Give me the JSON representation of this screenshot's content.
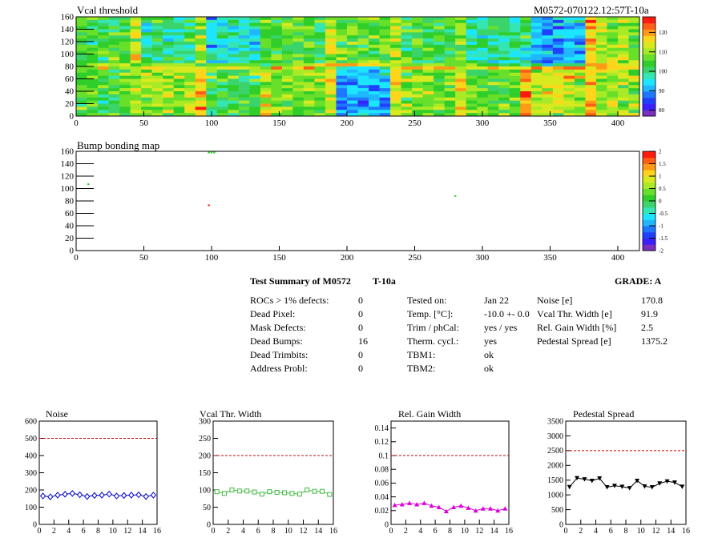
{
  "header": {
    "map_title": "Vcal threshold",
    "module_label": "M0572-070122.12:57T-10a",
    "bump_title": "Bump bonding map"
  },
  "summary": {
    "title": "Test Summary of M0572",
    "tag": "T-10a",
    "grade": "GRADE:  A",
    "col1": [
      {
        "label": "ROCs > 1% defects:",
        "value": "0"
      },
      {
        "label": "Dead Pixel:",
        "value": "0"
      },
      {
        "label": "Mask Defects:",
        "value": "0"
      },
      {
        "label": "Dead Bumps:",
        "value": "16"
      },
      {
        "label": "Dead Trimbits:",
        "value": "0"
      },
      {
        "label": "Address Probl:",
        "value": "0"
      }
    ],
    "col2": [
      {
        "label": "Tested on:",
        "value": "Jan 22"
      },
      {
        "label": "Temp. [°C]:",
        "value": "-10.0 +- 0.0"
      },
      {
        "label": "Trim / phCal:",
        "value": "yes / yes"
      },
      {
        "label": "Therm. cycl.:",
        "value": "yes"
      },
      {
        "label": "TBM1:",
        "value": "ok"
      },
      {
        "label": "TBM2:",
        "value": "ok"
      }
    ],
    "col3": [
      {
        "label": "Noise [e]",
        "value": "170.8"
      },
      {
        "label": "Vcal Thr. Width [e]",
        "value": "91.9"
      },
      {
        "label": "Rel. Gain Width [%]",
        "value": "2.5"
      },
      {
        "label": "Pedestal Spread [e]",
        "value": "1375.2"
      }
    ]
  },
  "chart_data": [
    {
      "type": "heatmap",
      "title": "Vcal threshold",
      "xlim": [
        0,
        416
      ],
      "ylim": [
        0,
        160
      ],
      "x_ticks": [
        0,
        50,
        100,
        150,
        200,
        250,
        300,
        350,
        400
      ],
      "y_ticks": [
        0,
        20,
        40,
        60,
        80,
        100,
        120,
        140,
        160
      ],
      "z_ticks": [
        80,
        90,
        100,
        110,
        120
      ],
      "zlim": [
        77,
        128
      ],
      "roc_mean_levels": {
        "top_row": [
          104,
          100,
          96,
          104,
          106,
          104,
          99,
          92,
          110
        ],
        "bottom_row": [
          104,
          110,
          104,
          107,
          91,
          108,
          106,
          112,
          110
        ]
      },
      "colors": [
        "#7b2fbf",
        "#3c1fff",
        "#2040ff",
        "#1e78ff",
        "#1fb8ff",
        "#1ce6ff",
        "#33e6b3",
        "#3ad46b",
        "#2fce2b",
        "#68e02a",
        "#a8ea25",
        "#d9e91f",
        "#ffd51c",
        "#ff9a17",
        "#ff5e14",
        "#ff1a10"
      ]
    },
    {
      "type": "heatmap",
      "title": "Bump bonding map",
      "xlim": [
        0,
        416
      ],
      "ylim": [
        0,
        160
      ],
      "x_ticks": [
        0,
        50,
        100,
        150,
        200,
        250,
        300,
        350,
        400
      ],
      "y_ticks": [
        0,
        20,
        40,
        60,
        80,
        100,
        120,
        140,
        160
      ],
      "z_ticks": [
        -2,
        -1.5,
        -1,
        -0.5,
        0,
        0.5,
        1,
        1.5,
        2
      ],
      "zlim": [
        -2,
        2
      ],
      "colors": [
        "#7b2fbf",
        "#3c1fff",
        "#2040ff",
        "#1e78ff",
        "#1fb8ff",
        "#1ce6ff",
        "#33e6b3",
        "#3ad46b",
        "#2fce2b",
        "#68e02a",
        "#a8ea25",
        "#d9e91f",
        "#ffd51c",
        "#ff9a17",
        "#ff5e14",
        "#ff1a10"
      ],
      "points": [
        {
          "x": 98,
          "y": 158,
          "color": "#2fce2b"
        },
        {
          "x": 100,
          "y": 158,
          "color": "#2fce2b"
        },
        {
          "x": 102,
          "y": 158,
          "color": "#2fce2b"
        },
        {
          "x": 9,
          "y": 107,
          "color": "#2fce2b"
        },
        {
          "x": 98,
          "y": 73,
          "color": "#ff1a10"
        },
        {
          "x": 280,
          "y": 88,
          "color": "#2fce2b"
        }
      ]
    },
    {
      "type": "line",
      "title": "Noise",
      "xlim": [
        0,
        16
      ],
      "ylim": [
        0,
        600
      ],
      "x_ticks": [
        0,
        2,
        4,
        6,
        8,
        10,
        12,
        14,
        16
      ],
      "y_ticks": [
        0,
        100,
        200,
        300,
        400,
        500,
        600
      ],
      "threshold": 500,
      "color": "#0000cc",
      "marker": "diamond-open",
      "x": [
        0.5,
        1.5,
        2.5,
        3.5,
        4.5,
        5.5,
        6.5,
        7.5,
        8.5,
        9.5,
        10.5,
        11.5,
        12.5,
        13.5,
        14.5,
        15.5
      ],
      "values": [
        165,
        160,
        170,
        175,
        180,
        172,
        162,
        168,
        170,
        176,
        165,
        168,
        170,
        172,
        162,
        170
      ]
    },
    {
      "type": "line",
      "title": "Vcal Thr. Width",
      "xlim": [
        0,
        16
      ],
      "ylim": [
        0,
        300
      ],
      "x_ticks": [
        0,
        2,
        4,
        6,
        8,
        10,
        12,
        14,
        16
      ],
      "y_ticks": [
        0,
        50,
        100,
        150,
        200,
        250,
        300
      ],
      "threshold": 200,
      "color": "#44bb44",
      "marker": "square-open",
      "x": [
        0.5,
        1.5,
        2.5,
        3.5,
        4.5,
        5.5,
        6.5,
        7.5,
        8.5,
        9.5,
        10.5,
        11.5,
        12.5,
        13.5,
        14.5,
        15.5
      ],
      "values": [
        95,
        90,
        100,
        97,
        97,
        94,
        88,
        95,
        93,
        92,
        90,
        88,
        100,
        96,
        96,
        87
      ]
    },
    {
      "type": "line",
      "title": "Rel. Gain Width",
      "xlim": [
        0,
        16
      ],
      "ylim": [
        0,
        0.15
      ],
      "x_ticks": [
        0,
        2,
        4,
        6,
        8,
        10,
        12,
        14,
        16
      ],
      "y_ticks": [
        0,
        0.02,
        0.04,
        0.06,
        0.08,
        0.1,
        0.12,
        0.14
      ],
      "threshold": 0.1,
      "color": "#dd00dd",
      "marker": "triangle-up",
      "x": [
        0.5,
        1.5,
        2.5,
        3.5,
        4.5,
        5.5,
        6.5,
        7.5,
        8.5,
        9.5,
        10.5,
        11.5,
        12.5,
        13.5,
        14.5,
        15.5
      ],
      "values": [
        0.028,
        0.029,
        0.031,
        0.029,
        0.031,
        0.027,
        0.025,
        0.019,
        0.025,
        0.027,
        0.024,
        0.02,
        0.023,
        0.023,
        0.02,
        0.023
      ]
    },
    {
      "type": "line",
      "title": "Pedestal Spread",
      "xlim": [
        0,
        16
      ],
      "ylim": [
        0,
        3500
      ],
      "x_ticks": [
        0,
        2,
        4,
        6,
        8,
        10,
        12,
        14,
        16
      ],
      "y_ticks": [
        0,
        500,
        1000,
        1500,
        2000,
        2500,
        3000,
        3500
      ],
      "threshold": 2500,
      "color": "#000000",
      "marker": "triangle-down",
      "x": [
        0.5,
        1.5,
        2.5,
        3.5,
        4.5,
        5.5,
        6.5,
        7.5,
        8.5,
        9.5,
        10.5,
        11.5,
        12.5,
        13.5,
        14.5,
        15.5
      ],
      "values": [
        1270,
        1570,
        1530,
        1480,
        1560,
        1260,
        1310,
        1280,
        1230,
        1480,
        1290,
        1260,
        1390,
        1460,
        1420,
        1280
      ]
    }
  ]
}
